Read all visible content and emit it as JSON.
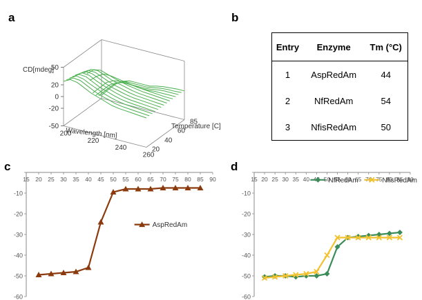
{
  "panels": {
    "a": "a",
    "b": "b",
    "c": "c",
    "d": "d"
  },
  "table": {
    "headers": [
      "Entry",
      "Enzyme",
      "Tm (°C)"
    ],
    "rows": [
      [
        "1",
        "AspRedAm",
        "44"
      ],
      [
        "2",
        "NfRedAm",
        "54"
      ],
      [
        "3",
        "NfisRedAm",
        "50"
      ]
    ]
  },
  "chart_data": [
    {
      "panel": "a",
      "type": "line",
      "xlabel": "Wavelength [nm]",
      "ylabel": "CD[mdeg]",
      "zlabel": "Temperature [C]",
      "x_ticks": [
        200,
        220,
        240,
        260
      ],
      "y_ticks": [
        50,
        20,
        0,
        -20,
        -50
      ],
      "z_ticks": [
        20,
        40,
        60,
        85
      ],
      "line_color": "#4caf50",
      "x": [
        200,
        205,
        210,
        215,
        220,
        225,
        230,
        235,
        240,
        245,
        250,
        255,
        260
      ],
      "series": [
        {
          "values": [
            -45,
            -32,
            -20,
            -12,
            -8,
            -8,
            -8,
            -8,
            -5,
            -3,
            -2,
            -1,
            -1
          ]
        },
        {
          "values": [
            -42,
            -30,
            -18,
            -10,
            -6,
            -6,
            -6,
            -6,
            -4,
            -2,
            -1,
            -1,
            0
          ]
        },
        {
          "values": [
            -38,
            -26,
            -14,
            -7,
            -4,
            -4,
            -4,
            -4,
            -3,
            -1,
            0,
            0,
            0
          ]
        },
        {
          "values": [
            -30,
            -18,
            -6,
            0,
            2,
            1,
            0,
            -1,
            -1,
            0,
            0,
            0,
            0
          ]
        },
        {
          "values": [
            -5,
            5,
            12,
            12,
            10,
            8,
            6,
            4,
            3,
            2,
            1,
            0,
            0
          ]
        },
        {
          "values": [
            10,
            20,
            22,
            18,
            14,
            11,
            8,
            6,
            4,
            3,
            2,
            1,
            0
          ]
        },
        {
          "values": [
            15,
            24,
            25,
            20,
            15,
            12,
            9,
            6,
            4,
            3,
            2,
            1,
            0
          ]
        },
        {
          "values": [
            18,
            26,
            26,
            21,
            16,
            12,
            9,
            6,
            4,
            3,
            2,
            1,
            0
          ]
        },
        {
          "values": [
            20,
            28,
            27,
            22,
            16,
            12,
            9,
            6,
            4,
            3,
            2,
            1,
            0
          ]
        },
        {
          "values": [
            22,
            29,
            28,
            22,
            17,
            13,
            9,
            6,
            4,
            3,
            2,
            1,
            0
          ]
        },
        {
          "values": [
            23,
            30,
            29,
            23,
            17,
            13,
            9,
            6,
            4,
            3,
            2,
            1,
            0
          ]
        },
        {
          "values": [
            24,
            31,
            29,
            23,
            18,
            13,
            9,
            6,
            4,
            3,
            2,
            1,
            0
          ]
        },
        {
          "values": [
            25,
            31,
            30,
            24,
            18,
            13,
            10,
            6,
            4,
            3,
            2,
            1,
            0
          ]
        },
        {
          "values": [
            26,
            32,
            30,
            24,
            18,
            14,
            10,
            6,
            4,
            3,
            2,
            1,
            0
          ]
        }
      ]
    },
    {
      "panel": "c",
      "type": "line",
      "x": [
        20,
        25,
        30,
        35,
        40,
        45,
        50,
        55,
        60,
        65,
        70,
        75,
        80,
        85
      ],
      "x_ticks": [
        15,
        20,
        25,
        30,
        35,
        40,
        45,
        50,
        55,
        60,
        65,
        70,
        75,
        80,
        85,
        90
      ],
      "y_ticks": [
        0,
        -10,
        -20,
        -30,
        -40,
        -50,
        -60
      ],
      "xlim": [
        15,
        90
      ],
      "ylim": [
        -60,
        0
      ],
      "legend": "right",
      "series": [
        {
          "name": "AspRedAm",
          "color": "#8b3a0e",
          "marker": "triangle",
          "values": [
            -49.5,
            -49,
            -48.5,
            -48,
            -46,
            -24,
            -9.5,
            -8,
            -8,
            -8,
            -7.5,
            -7.5,
            -7.5,
            -7.5
          ]
        }
      ]
    },
    {
      "panel": "d",
      "type": "line",
      "x": [
        20,
        25,
        30,
        35,
        40,
        45,
        50,
        55,
        60,
        65,
        70,
        75,
        80,
        85
      ],
      "x_ticks": [
        15,
        20,
        25,
        30,
        35,
        40,
        45,
        50,
        55,
        60,
        65,
        70,
        75,
        80,
        85,
        90
      ],
      "y_ticks": [
        0,
        -10,
        -20,
        -30,
        -40,
        -50,
        -60
      ],
      "xlim": [
        15,
        90
      ],
      "ylim": [
        -60,
        0
      ],
      "legend": "top-right",
      "series": [
        {
          "name": "NfRedAm",
          "color": "#3c8c5a",
          "marker": "diamond",
          "values": [
            -50.5,
            -50,
            -50,
            -50.5,
            -50,
            -50,
            -49,
            -36,
            -31.5,
            -31,
            -30.5,
            -30,
            -29.5,
            -29
          ]
        },
        {
          "name": "NfisRedAm",
          "color": "#f2c12e",
          "marker": "x",
          "values": [
            -51,
            -50.5,
            -50,
            -49.5,
            -49,
            -48,
            -40,
            -31.5,
            -31.5,
            -31.5,
            -31.5,
            -31.5,
            -31.5,
            -31.5
          ]
        }
      ]
    }
  ]
}
